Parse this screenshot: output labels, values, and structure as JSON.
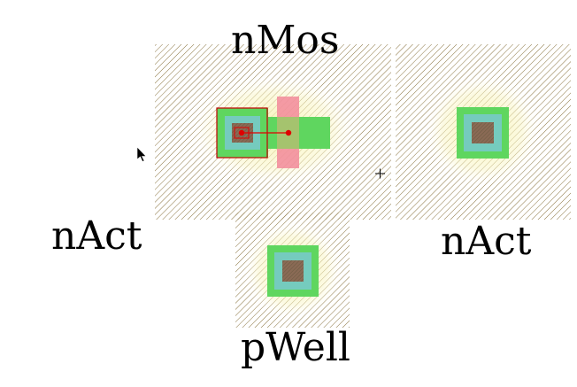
{
  "labels": {
    "nmos": "nMos",
    "nact_left": "nAct",
    "nact_right": "nAct",
    "pwell": "pWell"
  },
  "colors": {
    "hatch": "#8a7440",
    "well_glow": "#f4f0a0",
    "active_green": "#5fd65f",
    "poly_pink": "#f28a9a",
    "contact_fill": "#8a6a55",
    "highlight_red": "#e00000",
    "inner_cyan": "#7ac8d6"
  },
  "icons": {
    "cursor": "arrow-cursor-icon",
    "crosshair": "crosshair-icon"
  }
}
